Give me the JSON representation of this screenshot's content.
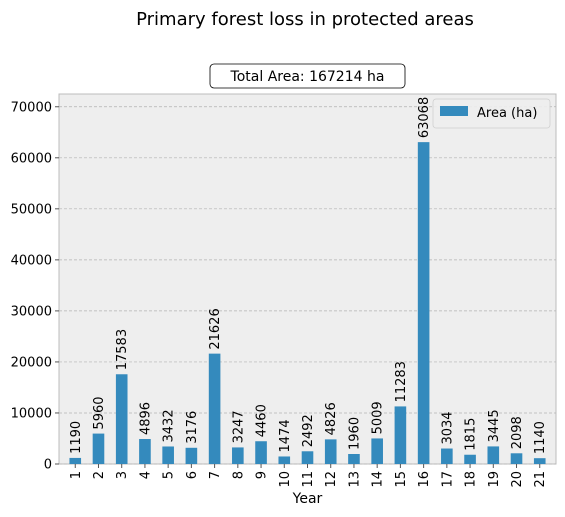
{
  "chart_data": {
    "type": "bar",
    "title": "Primary forest loss in protected areas",
    "annotation": "Total Area: 167214 ha",
    "xlabel": "Year",
    "ylabel": "",
    "ylim": [
      0,
      72500
    ],
    "yticks": [
      0,
      10000,
      20000,
      30000,
      40000,
      50000,
      60000,
      70000
    ],
    "grid": true,
    "legend_position": "top-right",
    "categories": [
      "1",
      "2",
      "3",
      "4",
      "5",
      "6",
      "7",
      "8",
      "9",
      "10",
      "11",
      "12",
      "13",
      "14",
      "15",
      "16",
      "17",
      "18",
      "19",
      "20",
      "21"
    ],
    "series": [
      {
        "name": "Area (ha)",
        "color": "#348abd",
        "values": [
          1190,
          5960,
          17583,
          4896,
          3432,
          3176,
          21626,
          3247,
          4460,
          1474,
          2492,
          4826,
          1960,
          5009,
          11283,
          63068,
          3034,
          1815,
          3445,
          2098,
          1140
        ]
      }
    ]
  }
}
